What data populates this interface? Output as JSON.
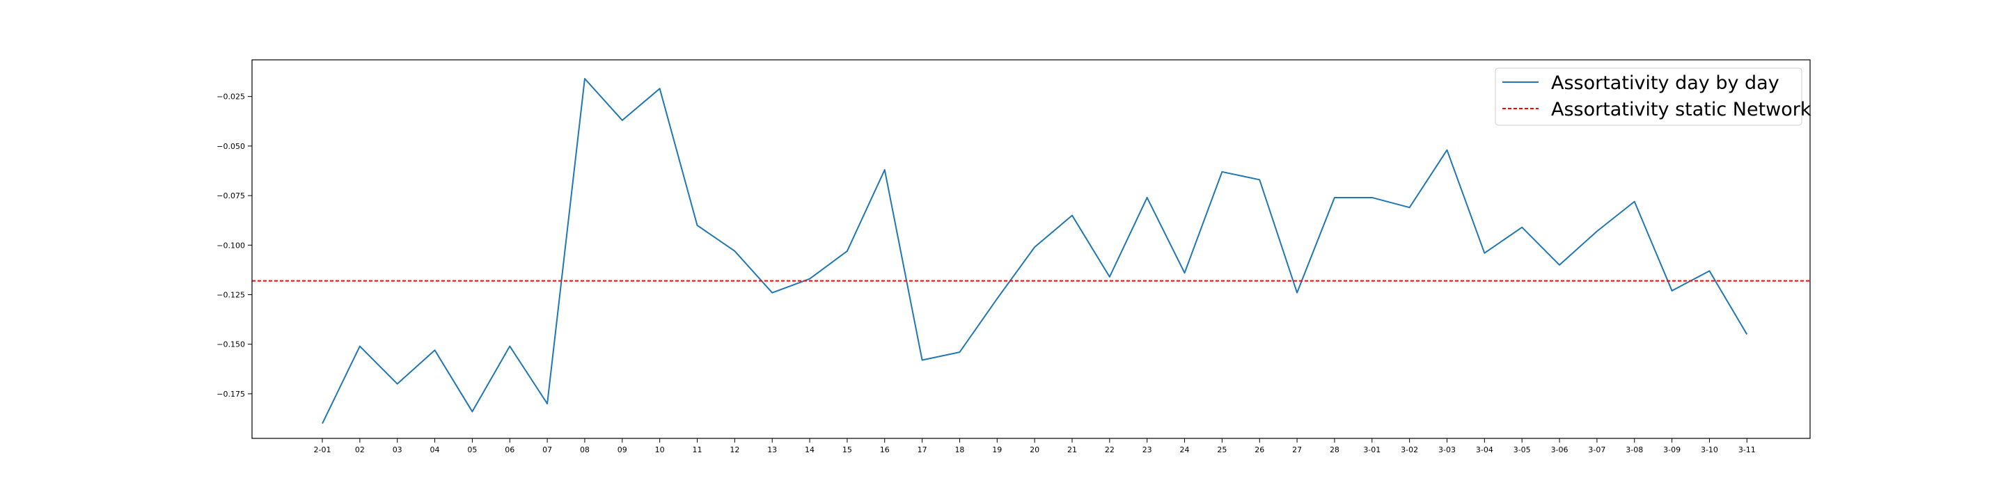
{
  "chart_data": {
    "type": "line",
    "title": "",
    "xlabel": "",
    "ylabel": "",
    "grid": false,
    "legend_position": "top-right",
    "categories": [
      "2-01",
      "02",
      "03",
      "04",
      "05",
      "06",
      "07",
      "08",
      "09",
      "10",
      "11",
      "12",
      "13",
      "14",
      "15",
      "16",
      "17",
      "18",
      "19",
      "20",
      "21",
      "22",
      "23",
      "24",
      "25",
      "26",
      "27",
      "28",
      "3-01",
      "3-02",
      "3-03",
      "3-04",
      "3-05",
      "3-06",
      "3-07",
      "3-08",
      "3-09",
      "3-10",
      "3-11"
    ],
    "ylim": [
      -0.1975,
      -0.0065
    ],
    "yticks": [
      -0.175,
      -0.15,
      -0.125,
      -0.1,
      -0.075,
      -0.05,
      -0.025
    ],
    "ytick_labels": [
      "−0.175",
      "−0.150",
      "−0.125",
      "−0.100",
      "−0.075",
      "−0.050",
      "−0.025"
    ],
    "series": [
      {
        "name": "Assortativity day by day",
        "color": "#1f77b4",
        "style": "solid",
        "values": [
          -0.19,
          -0.151,
          -0.17,
          -0.153,
          -0.184,
          -0.151,
          -0.18,
          -0.016,
          -0.037,
          -0.021,
          -0.09,
          -0.103,
          -0.124,
          -0.117,
          -0.103,
          -0.062,
          -0.158,
          -0.154,
          -0.127,
          -0.101,
          -0.085,
          -0.116,
          -0.076,
          -0.114,
          -0.063,
          -0.067,
          -0.124,
          -0.076,
          -0.076,
          -0.081,
          -0.052,
          -0.104,
          -0.091,
          -0.11,
          -0.093,
          -0.078,
          -0.123,
          -0.113,
          -0.145
        ]
      },
      {
        "name": "Assortativity static Network",
        "color": "#ff0000",
        "style": "dashed",
        "value": -0.118
      }
    ]
  }
}
